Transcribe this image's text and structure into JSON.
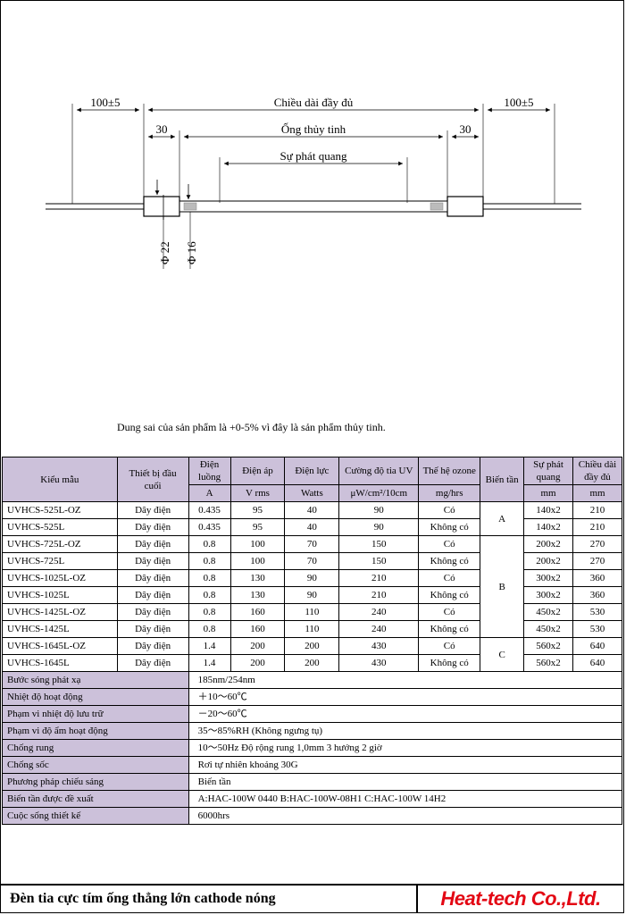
{
  "diagram": {
    "labels": {
      "full_length": "Chiều dài đầy đủ",
      "glass_tube": "Ống thủy tinh",
      "luminescence": "Sự phát quang",
      "end_margin": "100±5",
      "inner_margin": "30",
      "dia22": "Φ 22",
      "dia16": "Φ 16"
    }
  },
  "note": "Dung sai của sản phẩm là +0-5% vì đây là sản phẩm thủy tinh.",
  "table": {
    "headers": {
      "model": "Kiểu mẫu",
      "terminal": "Thiết bị đầu cuối",
      "current": "Điện luồng",
      "current_unit": "A",
      "voltage": "Điện áp",
      "voltage_unit": "V  rms",
      "power": "Điện lực",
      "power_unit": "Watts",
      "uv": "Cường độ tia UV",
      "uv_unit": "μW/cm²/10cm",
      "ozone": "Thế hệ ozone",
      "ozone_unit": "mg/hrs",
      "inverter": "Biến tần",
      "lum": "Sự phát quang",
      "lum_unit": "mm",
      "full": "Chiều dài đầy đủ",
      "full_unit": "mm"
    },
    "rows": [
      {
        "model": "UVHCS-525L-OZ",
        "terminal": "Dây điện",
        "current": "0.435",
        "voltage": "95",
        "power": "40",
        "uv": "90",
        "ozone": "Có",
        "inverter": "A",
        "lum": "140x2",
        "full": "210"
      },
      {
        "model": "UVHCS-525L",
        "terminal": "Dây điện",
        "current": "0.435",
        "voltage": "95",
        "power": "40",
        "uv": "90",
        "ozone": "Không có",
        "inverter": "",
        "lum": "140x2",
        "full": "210"
      },
      {
        "model": "UVHCS-725L-OZ",
        "terminal": "Dây điện",
        "current": "0.8",
        "voltage": "100",
        "power": "70",
        "uv": "150",
        "ozone": "Có",
        "inverter": "B",
        "lum": "200x2",
        "full": "270"
      },
      {
        "model": "UVHCS-725L",
        "terminal": "Dây điện",
        "current": "0.8",
        "voltage": "100",
        "power": "70",
        "uv": "150",
        "ozone": "Không có",
        "inverter": "",
        "lum": "200x2",
        "full": "270"
      },
      {
        "model": "UVHCS-1025L-OZ",
        "terminal": "Dây điện",
        "current": "0.8",
        "voltage": "130",
        "power": "90",
        "uv": "210",
        "ozone": "Có",
        "inverter": "",
        "lum": "300x2",
        "full": "360"
      },
      {
        "model": "UVHCS-1025L",
        "terminal": "Dây điện",
        "current": "0.8",
        "voltage": "130",
        "power": "90",
        "uv": "210",
        "ozone": "Không có",
        "inverter": "",
        "lum": "300x2",
        "full": "360"
      },
      {
        "model": "UVHCS-1425L-OZ",
        "terminal": "Dây điện",
        "current": "0.8",
        "voltage": "160",
        "power": "110",
        "uv": "240",
        "ozone": "Có",
        "inverter": "",
        "lum": "450x2",
        "full": "530"
      },
      {
        "model": "UVHCS-1425L",
        "terminal": "Dây điện",
        "current": "0.8",
        "voltage": "160",
        "power": "110",
        "uv": "240",
        "ozone": "Không có",
        "inverter": "",
        "lum": "450x2",
        "full": "530"
      },
      {
        "model": "UVHCS-1645L-OZ",
        "terminal": "Dây điện",
        "current": "1.4",
        "voltage": "200",
        "power": "200",
        "uv": "430",
        "ozone": "Có",
        "inverter": "C",
        "lum": "560x2",
        "full": "640"
      },
      {
        "model": "UVHCS-1645L",
        "terminal": "Dây điện",
        "current": "1.4",
        "voltage": "200",
        "power": "200",
        "uv": "430",
        "ozone": "Không có",
        "inverter": "",
        "lum": "560x2",
        "full": "640"
      }
    ]
  },
  "specs": [
    {
      "label": "Bước sóng phát xạ",
      "value": "185nm/254nm"
    },
    {
      "label": "Nhiệt độ hoạt động",
      "value": "＋10～60℃"
    },
    {
      "label": "Phạm vi nhiệt độ lưu trữ",
      "value": "－20～60℃"
    },
    {
      "label": "Phạm vi độ ẩm hoạt động",
      "value": "35～85%RH  (Không ngưng tụ)"
    },
    {
      "label": "Chống rung",
      "value": "10～50Hz Độ rộng rung 1,0mm 3 hướng 2 giờ"
    },
    {
      "label": "Chống sốc",
      "value": "Rơi tự nhiên khoảng 30G"
    },
    {
      "label": "Phương pháp chiếu sáng",
      "value": "Biến tần"
    },
    {
      "label": "Biến tần được đề xuất",
      "value": "A:HAC-100W 0440    B:HAC-100W-08H1    C:HAC-100W 14H2"
    },
    {
      "label": "Cuộc sống thiết kế",
      "value": "6000hrs"
    }
  ],
  "footer": {
    "title": "Đèn tia cực tím ống thẳng lớn cathode nóng",
    "company": "Heat-tech Co.,Ltd."
  }
}
